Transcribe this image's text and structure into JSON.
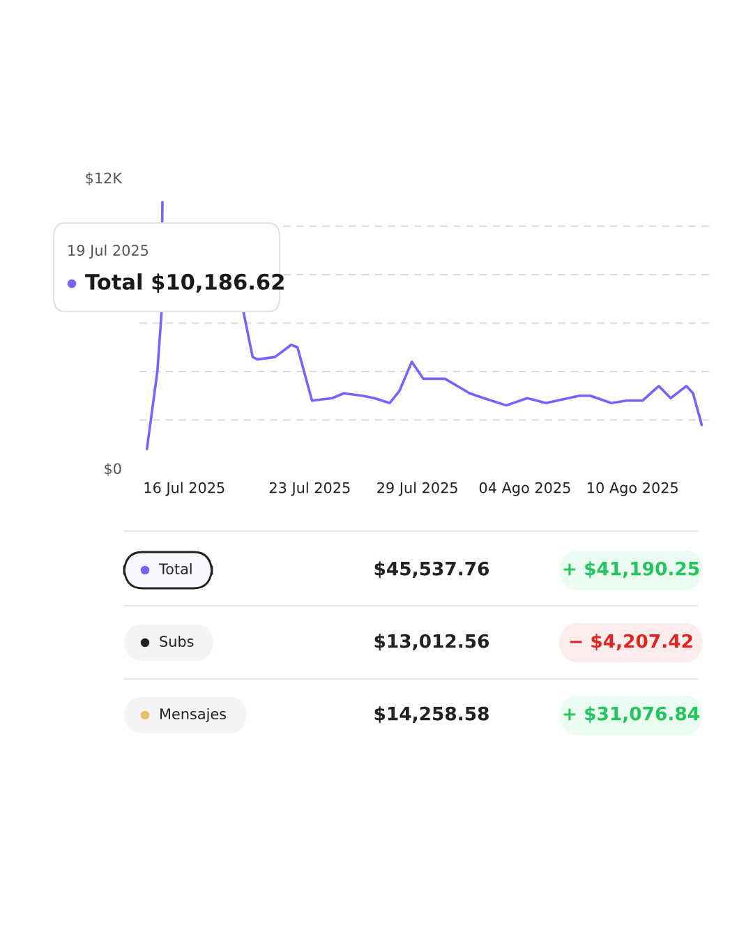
{
  "chart_data": {
    "type": "line",
    "x": [
      "2025-07-13T22:00",
      "2025-07-14T12:00",
      "2025-07-14T17:30",
      "2025-07-14T18:45",
      "2025-07-17T00:00",
      "2025-07-19T07:00",
      "2025-07-19T19:30",
      "2025-07-20T02:00",
      "2025-07-21T01:30",
      "2025-07-21T23:00",
      "2025-07-22T07:30",
      "2025-07-23T03:00",
      "2025-07-24T06:00",
      "2025-07-24T21:30",
      "2025-07-25T22:30",
      "2025-07-26T14:30",
      "2025-07-27T11:00",
      "2025-07-28T00:00",
      "2025-07-28T16:30",
      "2025-07-29T08:00",
      "2025-07-29T17:30",
      "2025-07-30T13:00",
      "2025-07-31T22:00",
      "2025-08-01T17:00",
      "2025-08-02T23:00",
      "2025-08-04T03:00",
      "2025-08-05T04:00",
      "2025-08-07T01:00",
      "2025-08-07T15:30",
      "2025-08-08T19:30",
      "2025-08-09T16:00",
      "2025-08-10T13:30",
      "2025-08-11T11:00",
      "2025-08-12T03:00",
      "2025-08-13T00:00",
      "2025-08-13T09:00",
      "2025-08-13T20:30"
    ],
    "series": [
      {
        "color": "#7b61ff",
        "values": [
          800,
          4000,
          6400,
          11000,
          null,
          6500,
          4600,
          4500,
          4600,
          5100,
          5000,
          2800,
          2900,
          3100,
          3000,
          2900,
          2700,
          3200,
          4400,
          3700,
          3700,
          3700,
          3100,
          2900,
          2600,
          2900,
          2700,
          3000,
          3000,
          2700,
          2800,
          2800,
          3400,
          2900,
          3400,
          3100,
          1800
        ]
      }
    ],
    "xlim": [
      "2025-07-13T12:00",
      "2025-08-14T12:00"
    ],
    "xticks": [
      {
        "value": "2025-07-16",
        "label": "16 Jul 2025"
      },
      {
        "value": "2025-07-23",
        "label": "23 Jul 2025"
      },
      {
        "value": "2025-07-29",
        "label": "29 Jul 2025"
      },
      {
        "value": "2025-08-04",
        "label": "04 Ago 2025"
      },
      {
        "value": "2025-08-10",
        "label": "10 Ago 2025"
      }
    ],
    "ylim": [
      0,
      12000
    ],
    "yticks": [
      {
        "value": 0,
        "label": "$0"
      },
      {
        "value": 2000,
        "label": null
      },
      {
        "value": 4000,
        "label": null
      },
      {
        "value": 6000,
        "label": null
      },
      {
        "value": 8000,
        "label": null
      },
      {
        "value": 10000,
        "label": null
      },
      {
        "value": 12000,
        "label": "$12K"
      }
    ],
    "grid": "y",
    "line_style": "solid",
    "annotations": [
      "19 Jul 2025",
      "Total $10,186.62",
      "Total",
      "$45,537.76",
      "+ $41,190.25",
      "Subs",
      "$13,012.56",
      "− $4,207.42",
      "Mensajes",
      "$14,258.58",
      "+ $31,076.84"
    ]
  }
}
